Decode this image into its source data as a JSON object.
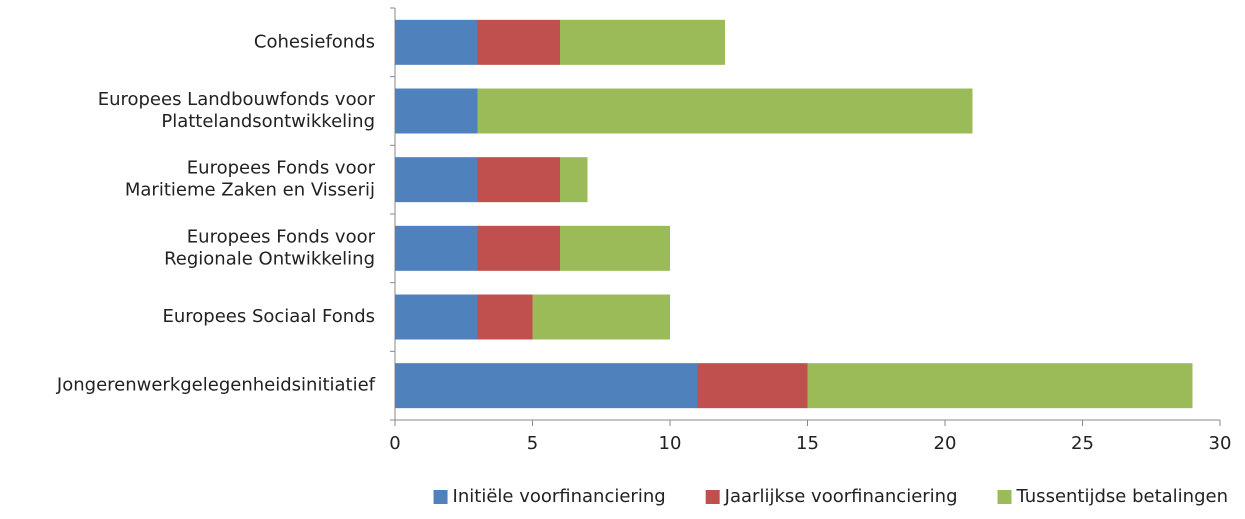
{
  "chart_data": {
    "type": "stacked-barh",
    "categories": [
      "Cohesiefonds",
      "Europees Landbouwfonds voor\nPlattelandsontwikkeling",
      "Europees Fonds voor\nMaritieme Zaken en Visserij",
      "Europees Fonds voor\nRegionale Ontwikkeling",
      "Europees Sociaal Fonds",
      "Jongerenwerkgelegenheidsinitiatief"
    ],
    "series": [
      {
        "name": "Initiële voorfinanciering",
        "color": "#4f81bd",
        "values": [
          3,
          3,
          3,
          3,
          3,
          11
        ]
      },
      {
        "name": "Jaarlijkse voorfinanciering",
        "color": "#c0504d",
        "values": [
          3,
          0,
          3,
          3,
          2,
          4
        ]
      },
      {
        "name": "Tussentijdse betalingen",
        "color": "#9bbb59",
        "values": [
          6,
          18,
          1,
          4,
          5,
          14
        ]
      }
    ],
    "xlim": [
      0,
      30
    ],
    "xticks": [
      0,
      5,
      10,
      15,
      20,
      25,
      30
    ],
    "legend": "bottom"
  }
}
